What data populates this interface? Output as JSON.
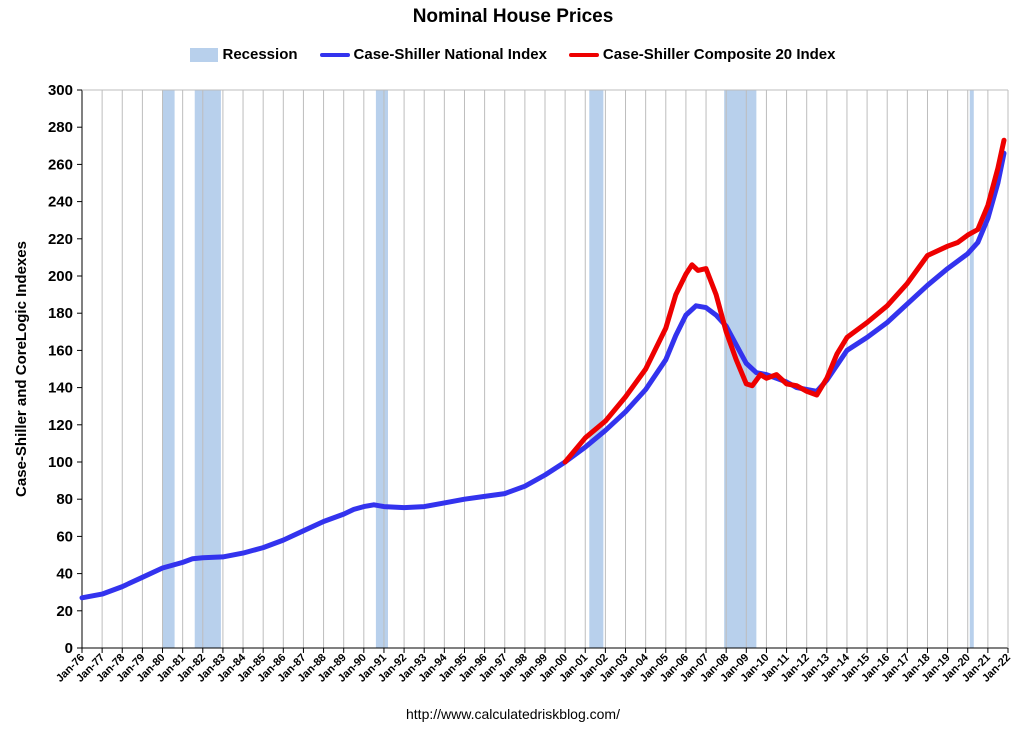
{
  "chart_data": {
    "type": "line",
    "title": "Nominal House Prices",
    "ylabel": "Case-Shiller and CoreLogic Indexes",
    "xlabel": "",
    "source_note": "http://www.calculatedriskblog.com/",
    "ylim": [
      0,
      300
    ],
    "yticks": [
      0,
      20,
      40,
      60,
      80,
      100,
      120,
      140,
      160,
      180,
      200,
      220,
      240,
      260,
      280,
      300
    ],
    "xlim": [
      1976.0,
      2022.0
    ],
    "xtick_labels": [
      "Jan-76",
      "Jan-77",
      "Jan-78",
      "Jan-79",
      "Jan-80",
      "Jan-81",
      "Jan-82",
      "Jan-83",
      "Jan-84",
      "Jan-85",
      "Jan-86",
      "Jan-87",
      "Jan-88",
      "Jan-89",
      "Jan-90",
      "Jan-91",
      "Jan-92",
      "Jan-93",
      "Jan-94",
      "Jan-95",
      "Jan-96",
      "Jan-97",
      "Jan-98",
      "Jan-99",
      "Jan-00",
      "Jan-01",
      "Jan-02",
      "Jan-03",
      "Jan-04",
      "Jan-05",
      "Jan-06",
      "Jan-07",
      "Jan-08",
      "Jan-09",
      "Jan-10",
      "Jan-11",
      "Jan-12",
      "Jan-13",
      "Jan-14",
      "Jan-15",
      "Jan-16",
      "Jan-17",
      "Jan-18",
      "Jan-19",
      "Jan-20",
      "Jan-21",
      "Jan-22"
    ],
    "grid": "vertical",
    "legend": [
      {
        "label": "Recession",
        "kind": "box",
        "color": "#b8d0ec"
      },
      {
        "label": "Case-Shiller National Index",
        "kind": "line",
        "color": "#3333ee"
      },
      {
        "label": "Case-Shiller Composite 20 Index",
        "kind": "line",
        "color": "#ee0000"
      }
    ],
    "recessions": [
      {
        "start": 1980.0,
        "end": 1980.6
      },
      {
        "start": 1981.6,
        "end": 1982.9
      },
      {
        "start": 1990.6,
        "end": 1991.2
      },
      {
        "start": 2001.2,
        "end": 2001.9
      },
      {
        "start": 2007.9,
        "end": 2009.5
      },
      {
        "start": 2020.1,
        "end": 2020.3
      }
    ],
    "series": [
      {
        "name": "Case-Shiller National Index",
        "color": "#3333ee",
        "x": [
          1976.0,
          1977.0,
          1978.0,
          1979.0,
          1980.0,
          1981.0,
          1981.5,
          1982.0,
          1983.0,
          1984.0,
          1985.0,
          1986.0,
          1987.0,
          1988.0,
          1989.0,
          1989.5,
          1990.0,
          1990.5,
          1991.0,
          1992.0,
          1993.0,
          1994.0,
          1995.0,
          1996.0,
          1997.0,
          1998.0,
          1999.0,
          2000.0,
          2001.0,
          2002.0,
          2003.0,
          2004.0,
          2005.0,
          2005.5,
          2006.0,
          2006.5,
          2007.0,
          2007.5,
          2008.0,
          2008.5,
          2009.0,
          2009.5,
          2010.0,
          2010.5,
          2011.0,
          2011.5,
          2012.0,
          2012.5,
          2013.0,
          2014.0,
          2015.0,
          2016.0,
          2017.0,
          2018.0,
          2019.0,
          2020.0,
          2020.5,
          2021.0,
          2021.5,
          2021.8
        ],
        "y": [
          27,
          29,
          33,
          38,
          43,
          46,
          48,
          48.5,
          49,
          51,
          54,
          58,
          63,
          68,
          72,
          74.5,
          76,
          77,
          76,
          75.5,
          76,
          78,
          80,
          81.5,
          83,
          87,
          93,
          100,
          108,
          117,
          127,
          139,
          155,
          168,
          179,
          184,
          183,
          179,
          173,
          163,
          153,
          148,
          147,
          145,
          143,
          140,
          139,
          138,
          144,
          160,
          167,
          175,
          185,
          195,
          204,
          212,
          218,
          231,
          250,
          266
        ]
      },
      {
        "name": "Case-Shiller Composite 20 Index",
        "color": "#ee0000",
        "x": [
          2000.0,
          2001.0,
          2002.0,
          2003.0,
          2004.0,
          2005.0,
          2005.5,
          2006.0,
          2006.3,
          2006.6,
          2007.0,
          2007.5,
          2008.0,
          2008.5,
          2009.0,
          2009.3,
          2009.7,
          2010.0,
          2010.5,
          2011.0,
          2011.5,
          2012.0,
          2012.5,
          2013.0,
          2013.5,
          2014.0,
          2015.0,
          2016.0,
          2017.0,
          2018.0,
          2019.0,
          2019.5,
          2020.0,
          2020.5,
          2021.0,
          2021.5,
          2021.8
        ],
        "y": [
          100,
          113,
          122,
          135,
          150,
          172,
          190,
          201,
          206,
          203,
          204,
          190,
          170,
          155,
          142,
          141,
          147,
          145,
          147,
          142,
          141,
          138,
          136,
          145,
          158,
          167,
          175,
          184,
          196,
          211,
          216,
          218,
          222,
          225,
          238,
          258,
          273
        ]
      }
    ]
  }
}
